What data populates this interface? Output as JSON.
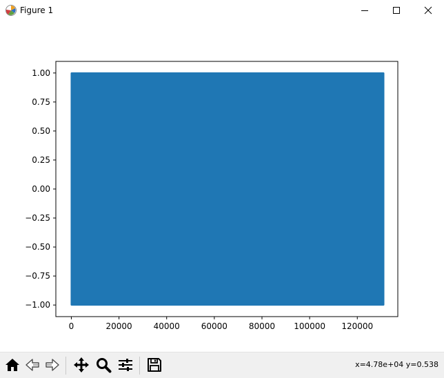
{
  "window": {
    "title": "Figure 1",
    "icon": "matplotlib-icon",
    "controls": [
      "minimize-icon",
      "maximize-icon",
      "close-icon"
    ]
  },
  "chart_data": {
    "type": "line",
    "title": "",
    "xlabel": "",
    "ylabel": "",
    "xlim": [
      -6500,
      137000
    ],
    "ylim": [
      -1.1,
      1.1
    ],
    "xticks": [
      0,
      20000,
      40000,
      60000,
      80000,
      100000,
      120000
    ],
    "xtick_labels": [
      "0",
      "20000",
      "40000",
      "60000",
      "80000",
      "100000",
      "120000"
    ],
    "yticks": [
      1.0,
      0.75,
      0.5,
      0.25,
      0.0,
      -0.25,
      -0.5,
      -0.75,
      -1.0
    ],
    "ytick_labels": [
      "1.00",
      "0.75",
      "0.50",
      "0.25",
      "0.00",
      "−0.25",
      "−0.50",
      "−0.75",
      "−1.00"
    ],
    "series": [
      {
        "x_range": [
          0,
          131072
        ],
        "y_range": [
          -1.0,
          1.0
        ],
        "description_values": [
          [
            0,
            -1.0
          ],
          [
            0,
            1.0
          ],
          [
            131072,
            1.0
          ],
          [
            131072,
            -1.0
          ]
        ],
        "color": "#1f77b4"
      }
    ],
    "grid": false,
    "legend": "none"
  },
  "toolbar": {
    "buttons": [
      {
        "name": "home-button",
        "icon": "home-icon"
      },
      {
        "name": "back-button",
        "icon": "back-arrow-icon"
      },
      {
        "name": "forward-button",
        "icon": "forward-arrow-icon"
      },
      {
        "name": "pan-button",
        "icon": "move-icon"
      },
      {
        "name": "zoom-button",
        "icon": "magnifier-icon"
      },
      {
        "name": "configure-subplots-button",
        "icon": "sliders-icon"
      },
      {
        "name": "save-button",
        "icon": "floppy-disk-icon"
      }
    ],
    "coords": "x=4.78e+04 y=0.538"
  }
}
